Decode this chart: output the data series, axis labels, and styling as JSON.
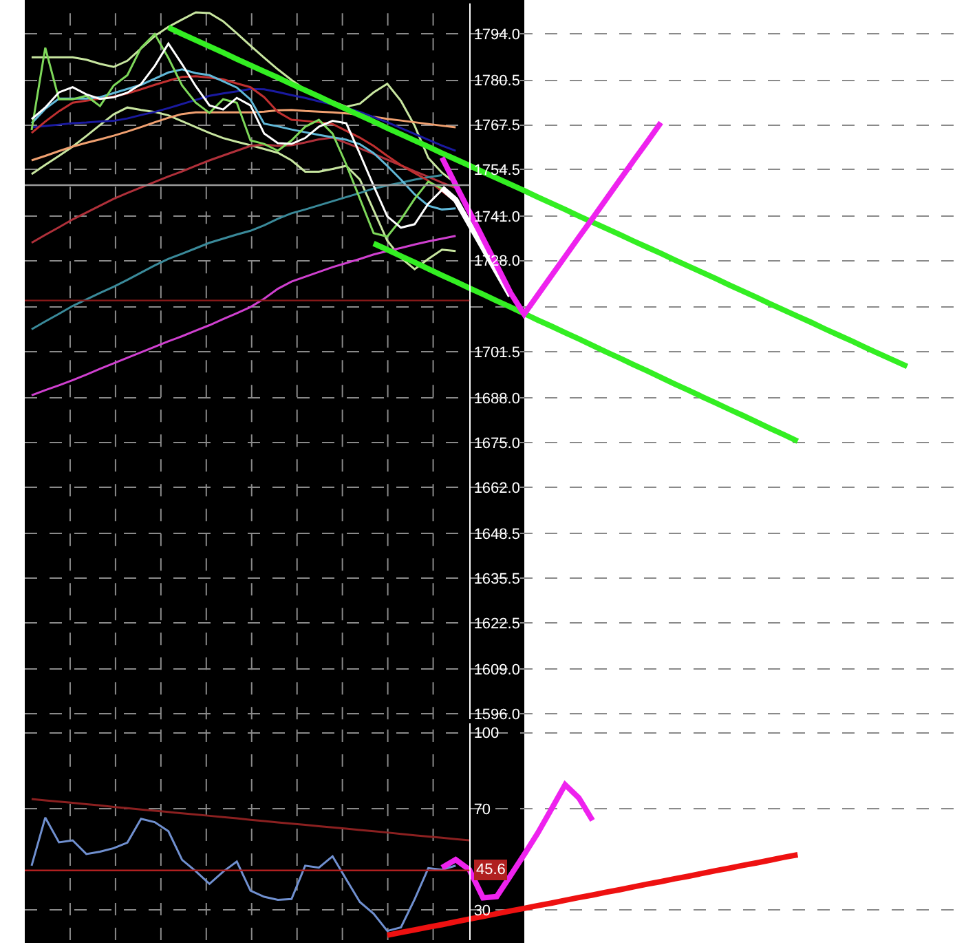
{
  "chart_data": [
    {
      "type": "line",
      "ylim": [
        1594.4,
        1802.8
      ],
      "tick_labels": "y",
      "grid": true,
      "marker": "none",
      "line_style": "solid",
      "categories": [
        null,
        null,
        null,
        null,
        null,
        null,
        null,
        null,
        null,
        null,
        null,
        null,
        null,
        null,
        null,
        null,
        null,
        null,
        null,
        null,
        null,
        null,
        null,
        null,
        null,
        null,
        null,
        null,
        null,
        null,
        null,
        null,
        null,
        null,
        null,
        null,
        null,
        null,
        null,
        null,
        null,
        null,
        null,
        null,
        null,
        null,
        null,
        null,
        null,
        null,
        null,
        null,
        null,
        null,
        null,
        null,
        null,
        null,
        null,
        null,
        null,
        null,
        null,
        null,
        null,
        null,
        null,
        null
      ],
      "yticks": [
        {
          "value": 1596,
          "label": "1596.0"
        },
        {
          "value": 1609,
          "label": "1609.0"
        },
        1622.5,
        1635.5,
        1648.5,
        {
          "value": 1662,
          "label": "1662.0"
        },
        {
          "value": 1675,
          "label": "1675.0"
        },
        {
          "value": 1688,
          "label": "1688.0"
        },
        1701.5,
        {
          "value": 1714.5,
          "label": null
        },
        {
          "value": 1728,
          "label": "1728.0"
        },
        {
          "value": 1741,
          "label": "1741.0"
        },
        1754.5,
        1767.5,
        1780.5,
        {
          "value": 1794,
          "label": "1794.0"
        }
      ],
      "ref_lines": [
        {
          "axis": "y",
          "value": 1716.4,
          "color": "#8b1a1a"
        },
        {
          "axis": "y",
          "value": 1750.0,
          "color": "#9a9a9a"
        }
      ],
      "series": [
        {
          "color": "#c8e6a0",
          "values": [
            1787.2,
            1787.2,
            1787.2,
            1787.2,
            1786.5,
            1785.3,
            1784.4,
            1786.2,
            1789.8,
            1793.4,
            1796.1,
            1798.2,
            1800.3,
            1800.1,
            1797.7,
            1794.2,
            1790.6,
            1787.1,
            1783.7,
            1780.6,
            1777.8,
            1775.9,
            1774.4,
            1772.8,
            1773.7,
            1777.0,
            1779.5,
            1774.5,
            1767.3,
            1757.9,
            1753.6,
            1750.5,
            null,
            null,
            null,
            null,
            null,
            null,
            null,
            null,
            null,
            null,
            null,
            null,
            null,
            null,
            null,
            null,
            null,
            null,
            null,
            null,
            null,
            null,
            null,
            null,
            null,
            null,
            null,
            null,
            null,
            null,
            null,
            null,
            null,
            null,
            null,
            null
          ]
        },
        {
          "color": "#c8e6a0",
          "values": [
            1753.2,
            1755.9,
            1758.5,
            1761.2,
            1764.3,
            1767.5,
            1770.6,
            1772.6,
            1771.9,
            1771.3,
            1770.3,
            1768.6,
            1766.9,
            1765.2,
            1763.7,
            1762.6,
            1761.6,
            1760.5,
            1759.4,
            1757.2,
            1753.9,
            1753.9,
            1754.7,
            1755.6,
            1751.6,
            1742.7,
            1733.8,
            1728.8,
            1725.5,
            1728.5,
            1731.2,
            1730.8,
            null,
            null,
            null,
            null,
            null,
            null,
            null,
            null,
            null,
            null,
            null,
            null,
            null,
            null,
            null,
            null,
            null,
            null,
            null,
            null,
            null,
            null,
            null,
            null,
            null,
            null,
            null,
            null,
            null,
            null,
            null,
            null,
            null,
            null,
            null,
            null
          ]
        },
        {
          "color": "#b0303a",
          "values": [
            1733.2,
            1735.5,
            1737.7,
            1740.0,
            1742.0,
            1744.0,
            1746.0,
            1747.7,
            1749.3,
            1750.9,
            1752.5,
            1754.0,
            1755.6,
            1757.2,
            1758.6,
            1760.0,
            1761.4,
            1761.8,
            1761.4,
            1761.6,
            1762.4,
            1763.3,
            1763.8,
            1762.3,
            1760.7,
            1759.1,
            1757.4,
            1755.7,
            1754.0,
            1752.4,
            1750.7,
            1749.2,
            null,
            null,
            null,
            null,
            null,
            null,
            null,
            null,
            null,
            null,
            null,
            null,
            null,
            null,
            null,
            null,
            null,
            null,
            null,
            null,
            null,
            null,
            null,
            null,
            null,
            null,
            null,
            null,
            null,
            null,
            null,
            null,
            null,
            null,
            null,
            null
          ]
        },
        {
          "color": "#3a8a9a",
          "values": [
            1708.0,
            1710.3,
            1712.5,
            1714.8,
            1716.7,
            1718.6,
            1720.4,
            1722.4,
            1724.5,
            1726.6,
            1728.5,
            1730.0,
            1731.6,
            1733.2,
            1734.4,
            1735.6,
            1736.7,
            1738.3,
            1740.2,
            1741.8,
            1742.9,
            1744.1,
            1745.3,
            1746.5,
            1747.7,
            1749.0,
            1749.9,
            1750.7,
            1751.6,
            1752.3,
            1752.9,
            null,
            null,
            null,
            null,
            null,
            null,
            null,
            null,
            null,
            null,
            null,
            null,
            null,
            null,
            null,
            null,
            null,
            null,
            null,
            null,
            null,
            null,
            null,
            null,
            null,
            null,
            null,
            null,
            null,
            null,
            null,
            null,
            null,
            null,
            null,
            null,
            null
          ]
        },
        {
          "color": "#d040d0",
          "values": [
            1688.8,
            1690.3,
            1691.7,
            1693.2,
            1694.8,
            1696.5,
            1698.1,
            1699.7,
            1701.3,
            1702.9,
            1704.5,
            1706.0,
            1707.6,
            1709.2,
            1711.0,
            1712.7,
            1714.5,
            1716.9,
            1719.8,
            1721.9,
            1723.3,
            1724.7,
            1726.1,
            1727.3,
            1728.5,
            1729.8,
            1730.8,
            1731.7,
            1732.7,
            1733.6,
            1734.4,
            1735.2,
            null,
            null,
            null,
            null,
            null,
            null,
            null,
            null,
            null,
            null,
            null,
            null,
            null,
            null,
            null,
            null,
            null,
            null,
            null,
            null,
            null,
            null,
            null,
            null,
            null,
            null,
            null,
            null,
            null,
            null,
            null,
            null,
            null,
            null,
            null,
            null
          ]
        },
        {
          "color": "#f0a070",
          "values": [
            1757.2,
            1758.5,
            1759.9,
            1761.2,
            1762.3,
            1763.3,
            1764.4,
            1765.6,
            1766.9,
            1768.3,
            1769.6,
            1770.7,
            1771.2,
            1771.2,
            1771.2,
            1771.2,
            1771.2,
            1771.4,
            1771.8,
            1771.9,
            1771.6,
            1771.4,
            1771.2,
            1770.9,
            1770.5,
            1769.9,
            1769.3,
            1768.8,
            1768.3,
            1767.8,
            1767.3,
            1766.8,
            null,
            null,
            null,
            null,
            null,
            null,
            null,
            null,
            null,
            null,
            null,
            null,
            null,
            null,
            null,
            null,
            null,
            null,
            null,
            null,
            null,
            null,
            null,
            null,
            null,
            null,
            null,
            null,
            null,
            null,
            null,
            null,
            null,
            null,
            null,
            null
          ]
        },
        {
          "color": "#1a1aa0",
          "values": [
            1766.8,
            1767.2,
            1767.6,
            1768.0,
            1768.2,
            1768.5,
            1768.7,
            1769.4,
            1770.4,
            1771.3,
            1772.4,
            1773.6,
            1774.8,
            1776.0,
            1776.7,
            1777.3,
            1778.0,
            1777.9,
            1777.1,
            1776.2,
            1775.4,
            1774.4,
            1773.5,
            1772.5,
            1771.3,
            1769.8,
            1768.3,
            1766.6,
            1764.9,
            1763.2,
            1761.5,
            1760.0,
            null,
            null,
            null,
            null,
            null,
            null,
            null,
            null,
            null,
            null,
            null,
            null,
            null,
            null,
            null,
            null,
            null,
            null,
            null,
            null,
            null,
            null,
            null,
            null,
            null,
            null,
            null,
            null,
            null,
            null,
            null,
            null,
            null,
            null,
            null,
            null
          ]
        },
        {
          "color": "#c03030",
          "values": [
            1765.2,
            1768.5,
            1771.5,
            1774.0,
            1774.6,
            1775.2,
            1775.8,
            1776.7,
            1777.9,
            1779.2,
            1780.4,
            1781.5,
            1781.7,
            1781.3,
            1780.8,
            1779.6,
            1778.5,
            1775.6,
            1771.3,
            1769.0,
            1768.7,
            1768.3,
            1767.8,
            1765.8,
            1763.8,
            1761.4,
            1758.5,
            1755.8,
            1753.5,
            1751.3,
            1748.2,
            1745.2,
            null,
            null,
            null,
            null,
            null,
            null,
            null,
            null,
            null,
            null,
            null,
            null,
            null,
            null,
            null,
            null,
            null,
            null,
            null,
            null,
            null,
            null,
            null,
            null,
            null,
            null,
            null,
            null,
            null,
            null,
            null,
            null,
            null,
            null,
            null,
            null
          ]
        },
        {
          "color": "#60b8d8",
          "values": [
            1768.0,
            1772.2,
            1775.2,
            1775.2,
            1775.2,
            1775.6,
            1776.8,
            1778.0,
            1779.2,
            1781.0,
            1782.8,
            1783.7,
            1782.6,
            1782.0,
            1780.2,
            1778.4,
            1774.9,
            1767.9,
            1767.1,
            1766.2,
            1765.4,
            1764.6,
            1763.9,
            1763.2,
            1761.9,
            1759.3,
            1755.6,
            1751.6,
            1747.3,
            1744.0,
            1742.9,
            1743.2,
            null,
            null,
            null,
            null,
            null,
            null,
            null,
            null,
            null,
            null,
            null,
            null,
            null,
            null,
            null,
            null,
            null,
            null,
            null,
            null,
            null,
            null,
            null,
            null,
            null,
            null,
            null,
            null,
            null,
            null,
            null,
            null,
            null,
            null,
            null,
            null
          ]
        },
        {
          "color": "#7ed85a",
          "values": [
            1766,
            1790,
            1775,
            1775,
            1776,
            1773,
            1779,
            1782,
            1790,
            1794,
            1787,
            1779,
            1774,
            1771,
            1775,
            1774,
            1763,
            1762,
            1760,
            1763,
            1767,
            1769,
            1765,
            1756,
            1746,
            1736,
            1735,
            1740,
            1746,
            1751,
            1749,
            null,
            null,
            null,
            null,
            null,
            null,
            null,
            null,
            null,
            null,
            null,
            null,
            null,
            null,
            null,
            null,
            null,
            null,
            null,
            null,
            null,
            null,
            null,
            null,
            null,
            null,
            null,
            null,
            null,
            null,
            null,
            null,
            null,
            null,
            null,
            null,
            null
          ]
        },
        {
          "color": "#ffffff",
          "values": [
            1769.2,
            1772.6,
            1777.0,
            1778.5,
            1776.4,
            1775.1,
            1775.6,
            1776.9,
            1779.4,
            1784.7,
            1791.2,
            1785.2,
            1778.8,
            1773.2,
            1772.0,
            1775.4,
            1773.2,
            1765.0,
            1762.2,
            1762.0,
            1763.7,
            1767.0,
            1768.7,
            1768.0,
            1759.1,
            1749.8,
            1740.9,
            1737.6,
            1738.6,
            1744.6,
            1748.6,
            null,
            null,
            null,
            null,
            null,
            null,
            null,
            null,
            null,
            null,
            null,
            null,
            null,
            null,
            null,
            null,
            null,
            null,
            null,
            null,
            null,
            null,
            null,
            null,
            null,
            null,
            null,
            null,
            null,
            null,
            null,
            null,
            null,
            null,
            null,
            null,
            null
          ]
        },
        {
          "type": "line",
          "color": "#ffffff",
          "values": [
            null,
            null,
            null,
            null,
            null,
            null,
            null,
            null,
            null,
            null,
            null,
            null,
            null,
            null,
            null,
            null,
            null,
            null,
            null,
            null,
            null,
            null,
            null,
            null,
            null,
            null,
            null,
            null,
            null,
            null,
            1749.2,
            1745.7,
            1738.7,
            1731.7,
            1724.7,
            1717.7,
            null,
            null,
            null,
            null,
            null,
            null,
            null,
            null,
            null,
            null,
            null,
            null,
            null,
            null,
            null,
            null,
            null,
            null,
            null,
            null,
            null,
            null,
            null,
            null,
            null,
            null,
            null,
            null,
            null,
            null,
            null,
            null
          ]
        },
        {
          "type": "line",
          "color": "#33ee22",
          "values": [
            null,
            null,
            null,
            null,
            null,
            null,
            null,
            null,
            null,
            null,
            1795.9,
            1794.0,
            1792.2,
            1790.4,
            1788.6,
            1786.7,
            1784.9,
            1783.1,
            1781.3,
            1779.4,
            1777.6,
            1775.8,
            1773.9,
            1772.1,
            1770.3,
            1768.5,
            1766.6,
            1764.8,
            1763.0,
            1761.2,
            1759.3,
            1757.5,
            1755.7,
            1753.8,
            1752.0,
            1750.2,
            1748.4,
            1746.5,
            1744.7,
            1742.9,
            1741.0,
            1739.2,
            1737.4,
            1735.6,
            1733.7,
            1731.9,
            1730.1,
            1728.2,
            1726.4,
            1724.6,
            1722.8,
            1720.9,
            1719.1,
            1717.3,
            1715.4,
            1713.6,
            1711.8,
            1710.0,
            1708.1,
            1706.3,
            1704.5,
            1702.6,
            1700.8,
            1699.0,
            1697.2,
            null,
            null,
            null
          ]
        },
        {
          "type": "line",
          "color": "#33ee22",
          "values": [
            null,
            null,
            null,
            null,
            null,
            null,
            null,
            null,
            null,
            null,
            null,
            null,
            null,
            null,
            null,
            null,
            null,
            null,
            null,
            null,
            null,
            null,
            null,
            null,
            null,
            1733.0,
            1731.2,
            1729.3,
            1727.5,
            1725.6,
            1723.7,
            1721.9,
            1720.0,
            1718.2,
            1716.3,
            1714.5,
            1712.6,
            1710.7,
            1708.9,
            1707.0,
            1705.2,
            1703.3,
            1701.4,
            1699.6,
            1697.7,
            1695.9,
            1694.0,
            1692.1,
            1690.3,
            1688.4,
            1686.6,
            1684.7,
            1682.9,
            1681.0,
            1679.1,
            1677.3,
            1675.4,
            null,
            null,
            null,
            null,
            null,
            null,
            null,
            null,
            null,
            null,
            null
          ]
        },
        {
          "type": "line",
          "color": "#ee22ee",
          "values": [
            null,
            null,
            null,
            null,
            null,
            null,
            null,
            null,
            null,
            null,
            null,
            null,
            null,
            null,
            null,
            null,
            null,
            null,
            null,
            null,
            null,
            null,
            null,
            null,
            null,
            null,
            null,
            null,
            null,
            null,
            1758.0,
            1750.1,
            1742.3,
            1734.4,
            1726.6,
            1718.7,
            1712.4,
            1718.0,
            1723.6,
            1729.2,
            1734.8,
            1740.3,
            1745.9,
            1751.5,
            1757.1,
            1762.6,
            1768.2,
            null,
            null,
            null,
            null,
            null,
            null,
            null,
            null,
            null,
            null,
            null,
            null,
            null,
            null,
            null,
            null,
            null,
            null,
            null,
            null,
            null
          ]
        }
      ]
    },
    {
      "type": "line",
      "ylim": [
        18.1,
        103.8
      ],
      "tick_labels": "y",
      "grid": true,
      "marker": "none",
      "line_style": "solid",
      "categories": [
        null,
        null,
        null,
        null,
        null,
        null,
        null,
        null,
        null,
        null,
        null,
        null,
        null,
        null,
        null,
        null,
        null,
        null,
        null,
        null,
        null,
        null,
        null,
        null,
        null,
        null,
        null,
        null,
        null,
        null,
        null,
        null,
        null,
        null,
        null,
        null,
        null,
        null,
        null,
        null,
        null,
        null,
        null,
        null,
        null,
        null,
        null,
        null,
        null,
        null,
        null,
        null,
        null,
        null,
        null,
        null,
        null,
        null,
        null,
        null,
        null,
        null,
        null,
        null,
        null,
        null,
        null,
        null
      ],
      "yticks": [
        30,
        70,
        100
      ],
      "ref_lines": [
        {
          "axis": "y",
          "value": 45.6,
          "label": "45.6",
          "color": "#b02020"
        }
      ],
      "series": [
        {
          "color": "#8b2020",
          "values": [
            73.8,
            73.3,
            72.8,
            72.3,
            71.8,
            71.3,
            70.7,
            70.2,
            69.7,
            69.2,
            68.7,
            68.2,
            67.7,
            67.2,
            66.7,
            66.2,
            65.6,
            65.1,
            64.6,
            64.1,
            63.6,
            63.1,
            62.6,
            62.1,
            61.6,
            61.1,
            60.6,
            60.0,
            59.5,
            59.0,
            58.5,
            58.0,
            57.5,
            null,
            null,
            null,
            null,
            null,
            null,
            null,
            null,
            null,
            null,
            null,
            null,
            null,
            null,
            null,
            null,
            null,
            null,
            null,
            null,
            null,
            null,
            null,
            null,
            null,
            null,
            null,
            null,
            null,
            null,
            null,
            null,
            null,
            null,
            null
          ]
        },
        {
          "color": "#7090d0",
          "values": [
            47.5,
            66.5,
            56.7,
            57.5,
            52.1,
            53.0,
            54.4,
            56.6,
            66.0,
            64.7,
            61.1,
            49.8,
            45.3,
            40.3,
            45.1,
            49.1,
            37.6,
            35.2,
            34.0,
            34.3,
            47.5,
            46.7,
            51.2,
            42.1,
            33.1,
            28.5,
            21.7,
            23.1,
            34.2,
            46.5,
            45.9,
            47.5,
            null,
            null,
            null,
            null,
            null,
            null,
            null,
            null,
            null,
            null,
            null,
            null,
            null,
            null,
            null,
            null,
            null,
            null,
            null,
            null,
            null,
            null,
            null,
            null,
            null,
            null,
            null,
            null,
            null,
            null,
            null,
            null,
            null,
            null,
            null,
            null
          ]
        },
        {
          "type": "line",
          "color": "#ee22ee",
          "values": [
            null,
            null,
            null,
            null,
            null,
            null,
            null,
            null,
            null,
            null,
            null,
            null,
            null,
            null,
            null,
            null,
            null,
            null,
            null,
            null,
            null,
            null,
            null,
            null,
            null,
            null,
            null,
            null,
            null,
            null,
            46.7,
            49.9,
            45.9,
            34.8,
            35.3,
            43.5,
            51.8,
            60.4,
            69.9,
            79.5,
            74.3,
            65.4,
            null,
            null,
            null,
            null,
            null,
            null,
            null,
            null,
            null,
            null,
            null,
            null,
            null,
            null,
            null,
            null,
            null,
            null,
            null,
            null,
            null,
            null,
            null,
            null,
            null,
            null
          ]
        },
        {
          "type": "line",
          "color": "#ee1111",
          "values": [
            null,
            null,
            null,
            null,
            null,
            null,
            null,
            null,
            null,
            null,
            null,
            null,
            null,
            null,
            null,
            null,
            null,
            null,
            null,
            null,
            null,
            null,
            null,
            null,
            null,
            null,
            20.0,
            21.1,
            22.1,
            23.2,
            24.2,
            25.3,
            26.4,
            27.4,
            28.5,
            29.6,
            30.6,
            31.7,
            32.7,
            33.8,
            34.9,
            35.9,
            37.0,
            38.0,
            39.1,
            40.2,
            41.2,
            42.3,
            43.3,
            44.4,
            45.5,
            46.5,
            47.6,
            48.6,
            49.7,
            50.8,
            51.8,
            null,
            null,
            null,
            null,
            null,
            null,
            null,
            null,
            null,
            null,
            null
          ]
        }
      ]
    }
  ]
}
